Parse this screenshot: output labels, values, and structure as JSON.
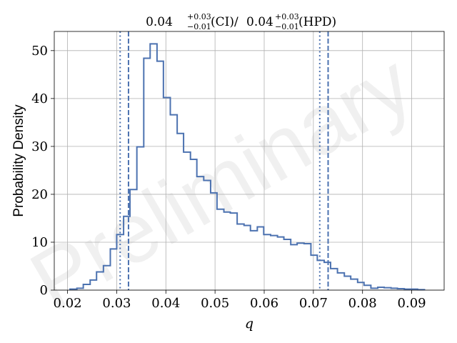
{
  "chart_data": {
    "type": "histogram",
    "title": {
      "ci_value": "0.04",
      "ci_plus": "+0.03",
      "ci_minus": "−0.01",
      "ci_tag": "(CI)/",
      "hpd_value": "0.04",
      "hpd_plus": "+0.03",
      "hpd_minus": "−0.01",
      "hpd_tag": "(HPD)"
    },
    "xlabel": "q",
    "ylabel": "Probability Density",
    "watermark": "Preliminary",
    "xlim": [
      0.0173,
      0.0966
    ],
    "ylim": [
      0,
      54
    ],
    "xticks": [
      0.02,
      0.03,
      0.04,
      0.05,
      0.06,
      0.07,
      0.08,
      0.09
    ],
    "xtick_labels": [
      "0.02",
      "0.03",
      "0.04",
      "0.05",
      "0.06",
      "0.07",
      "0.08",
      "0.09"
    ],
    "yticks": [
      0,
      10,
      20,
      30,
      40,
      50
    ],
    "ytick_labels": [
      "0",
      "10",
      "20",
      "30",
      "40",
      "50"
    ],
    "grid": true,
    "color": "#4c72b0",
    "bin_edges": [
      0.0205,
      0.0219,
      0.0232,
      0.0246,
      0.0259,
      0.0273,
      0.0287,
      0.03,
      0.0314,
      0.0327,
      0.0341,
      0.0355,
      0.0368,
      0.0382,
      0.0395,
      0.0409,
      0.0423,
      0.0436,
      0.045,
      0.0463,
      0.0477,
      0.0491,
      0.0504,
      0.0518,
      0.0531,
      0.0545,
      0.0559,
      0.0572,
      0.0586,
      0.0599,
      0.0613,
      0.0627,
      0.064,
      0.0654,
      0.0667,
      0.0681,
      0.0695,
      0.0708,
      0.0722,
      0.0735,
      0.0749,
      0.0763,
      0.0776,
      0.079,
      0.0803,
      0.0817,
      0.0831,
      0.0844,
      0.0858,
      0.0871,
      0.0885,
      0.0899,
      0.0912,
      0.0926
    ],
    "densities": [
      0.2,
      0.4,
      1.2,
      2.1,
      3.8,
      5.1,
      8.6,
      11.6,
      15.4,
      21.0,
      29.9,
      48.4,
      51.4,
      47.8,
      40.2,
      36.6,
      32.7,
      28.8,
      27.3,
      23.7,
      22.9,
      20.3,
      16.9,
      16.3,
      16.1,
      13.8,
      13.5,
      12.4,
      13.2,
      11.6,
      11.4,
      11.1,
      10.6,
      9.5,
      9.8,
      9.7,
      7.3,
      6.2,
      5.8,
      4.5,
      3.6,
      2.9,
      2.3,
      1.6,
      1.0,
      0.4,
      0.6,
      0.5,
      0.4,
      0.3,
      0.2,
      0.2,
      0.1
    ],
    "credible_interval": [
      0.0307,
      0.0713
    ],
    "hpd_interval": [
      0.0324,
      0.073
    ]
  }
}
